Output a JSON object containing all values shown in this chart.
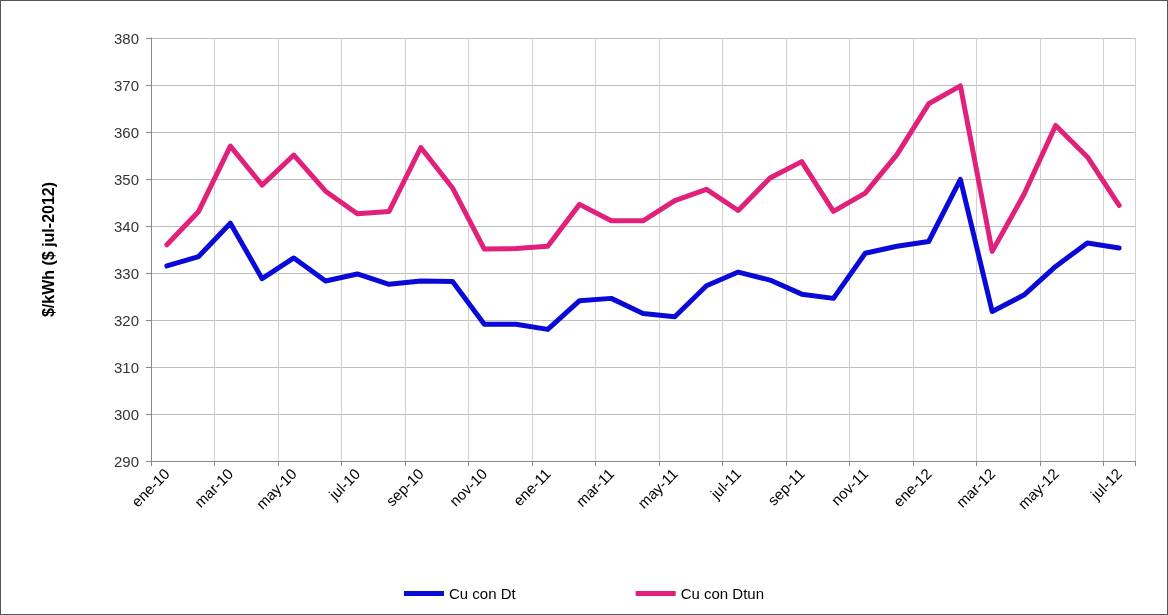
{
  "chart_data": {
    "type": "line",
    "ylabel": "$/kWh ($ jul-2012)",
    "categories": [
      "ene-10",
      null,
      "mar-10",
      null,
      "may-10",
      null,
      "jul-10",
      null,
      "sep-10",
      null,
      "nov-10",
      null,
      "ene-11",
      null,
      "mar-11",
      null,
      "may-11",
      null,
      "jul-11",
      null,
      "sep-11",
      null,
      "nov-11",
      null,
      "ene-12",
      null,
      "mar-12",
      null,
      "may-12",
      null,
      "jul-12"
    ],
    "series": [
      {
        "name": "Cu con Dt",
        "color": "#0a0ad8",
        "values": [
          331.5,
          333.5,
          340.6,
          328.8,
          333.2,
          328.3,
          329.8,
          327.6,
          328.3,
          328.2,
          319.1,
          319.1,
          318.0,
          324.1,
          324.6,
          321.4,
          320.7,
          327.3,
          330.2,
          328.5,
          325.5,
          324.6,
          334.2,
          335.7,
          336.7,
          349.9,
          321.8,
          325.3,
          331.4,
          336.4,
          335.3
        ]
      },
      {
        "name": "Cu con Dtun",
        "color": "#e0207a",
        "values": [
          336.0,
          343.1,
          357.0,
          348.7,
          355.1,
          347.4,
          342.6,
          343.1,
          356.7,
          348.1,
          335.1,
          335.2,
          335.7,
          344.6,
          341.1,
          341.1,
          345.4,
          347.8,
          343.3,
          350.2,
          353.7,
          343.1,
          347.0,
          355.2,
          366.0,
          369.8,
          334.6,
          346.7,
          361.4,
          354.7,
          344.4
        ]
      }
    ],
    "ylim": [
      290,
      380
    ],
    "yticks": [
      290,
      300,
      310,
      320,
      330,
      340,
      350,
      360,
      370,
      380
    ],
    "grid": true,
    "legend": "bottom",
    "marker": "none",
    "line_style": "solid"
  }
}
